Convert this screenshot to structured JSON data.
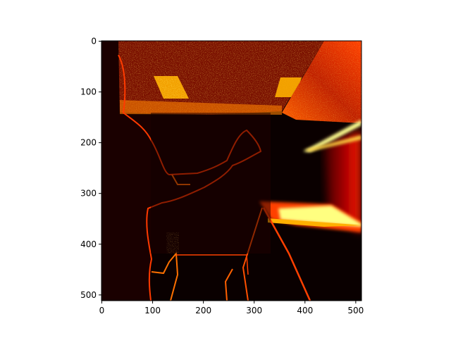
{
  "image": {
    "description_colormap": "hot",
    "x_axis": {
      "range": [
        0,
        512
      ],
      "ticks": [
        0,
        100,
        200,
        300,
        400,
        500
      ],
      "tick_labels": [
        "0",
        "100",
        "200",
        "300",
        "400",
        "500"
      ]
    },
    "y_axis": {
      "range": [
        0,
        512
      ],
      "inverted": true,
      "ticks": [
        0,
        100,
        200,
        300,
        400,
        500
      ],
      "tick_labels": [
        "0",
        "100",
        "200",
        "300",
        "400",
        "500"
      ]
    }
  }
}
